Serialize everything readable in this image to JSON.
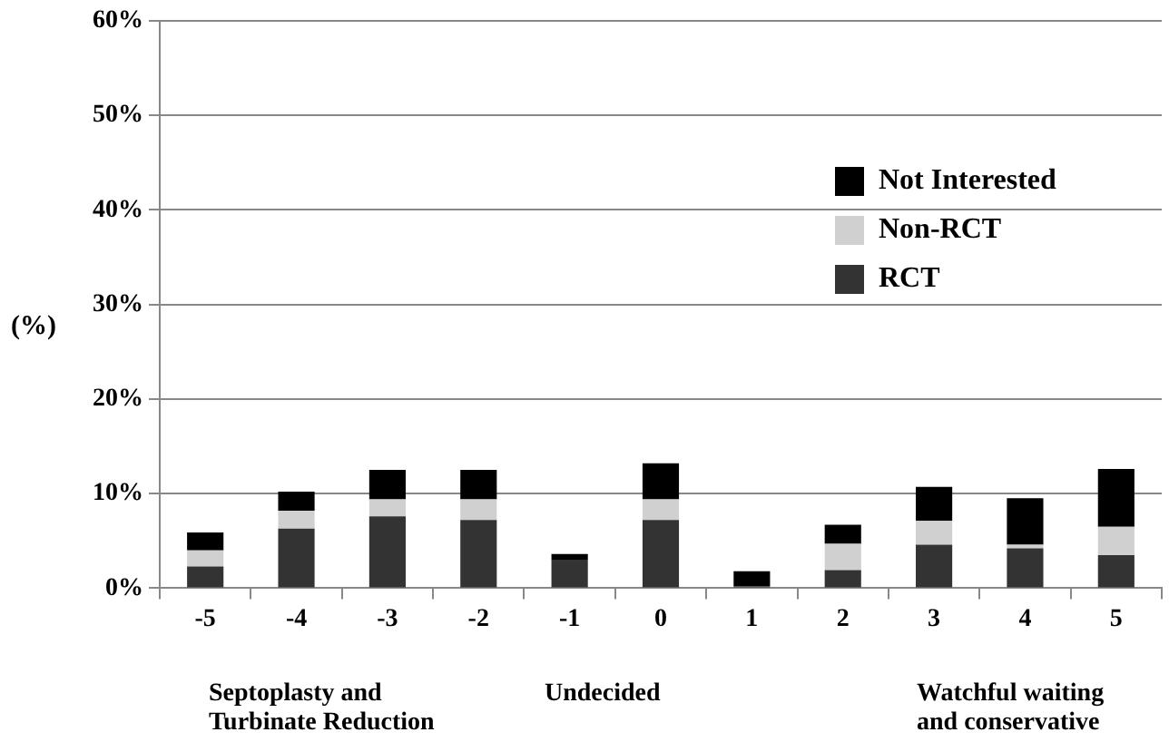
{
  "chart_data": {
    "type": "bar",
    "stacked": true,
    "ylabel": "(%)",
    "categories": [
      "-5",
      "-4",
      "-3",
      "-2",
      "-1",
      "0",
      "1",
      "2",
      "3",
      "4",
      "5"
    ],
    "series": [
      {
        "name": "RCT",
        "color": "#333333",
        "values": [
          2.3,
          6.3,
          7.6,
          7.2,
          3.0,
          7.2,
          0.2,
          1.9,
          4.6,
          4.2,
          3.5
        ]
      },
      {
        "name": "Non-RCT",
        "color": "#d0d0d0",
        "values": [
          1.7,
          1.9,
          1.8,
          2.2,
          0,
          2.2,
          0,
          2.8,
          2.5,
          0.4,
          3.0
        ]
      },
      {
        "name": "Not Interested",
        "color": "#000000",
        "values": [
          1.9,
          2.0,
          3.1,
          3.1,
          0.6,
          3.8,
          1.6,
          2.0,
          3.6,
          4.9,
          6.1
        ]
      }
    ],
    "ylim": [
      0,
      60
    ],
    "yticks": [
      {
        "value": 0,
        "label": "0%"
      },
      {
        "value": 10,
        "label": "10%"
      },
      {
        "value": 20,
        "label": "20%"
      },
      {
        "value": 30,
        "label": "30%"
      },
      {
        "value": 40,
        "label": "40%"
      },
      {
        "value": 50,
        "label": "50%"
      },
      {
        "value": 60,
        "label": "60%"
      }
    ],
    "grid": "y",
    "legend": "top right",
    "annotations": [
      "Septoplasty and\nTurbinate Reduction",
      "Undecided",
      "Watchful waiting\nand conservative"
    ]
  }
}
